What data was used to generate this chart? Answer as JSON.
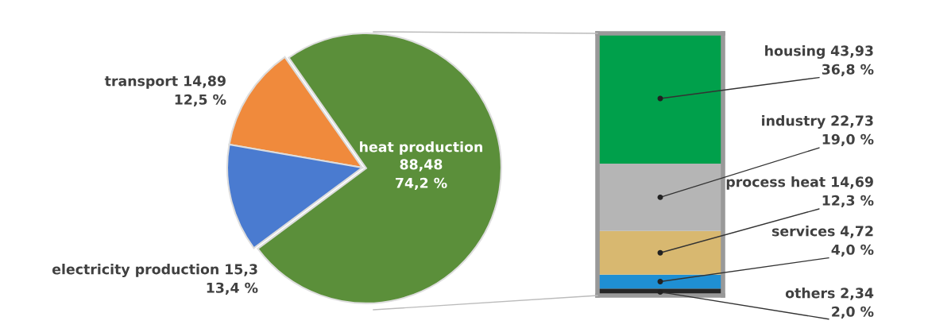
{
  "chart_data": [
    {
      "type": "pie",
      "categories": [
        "heat production",
        "transport",
        "electricity production"
      ],
      "values": [
        88.48,
        14.89,
        15.3
      ],
      "colors": [
        "#5b8f3a",
        "#f08a3c",
        "#4a7bd0"
      ],
      "value_labels": [
        "88,48\n74,2 %",
        "14,89\n12,5 %",
        "15,3\n13,4 %"
      ],
      "legend": false
    },
    {
      "type": "bar",
      "stacked": true,
      "categories": [
        null
      ],
      "legend": false,
      "series": [
        {
          "name": "others",
          "color": "#262626",
          "values": [
            2.34
          ],
          "value_labels": [
            "2,34\n2,0 %"
          ]
        },
        {
          "name": "services",
          "color": "#1f8fd3",
          "values": [
            4.72
          ],
          "value_labels": [
            "4,72\n4,0 %"
          ]
        },
        {
          "name": "process heat",
          "color": "#d8b870",
          "values": [
            14.69
          ],
          "value_labels": [
            "14,69\n12,3 %"
          ]
        },
        {
          "name": "industry",
          "color": "#b5b5b5",
          "values": [
            22.73
          ],
          "value_labels": [
            "22,73\n19,0 %"
          ]
        },
        {
          "name": "housing",
          "color": "#00a04b",
          "values": [
            43.93
          ],
          "value_labels": [
            "43,93\n36,8 %"
          ]
        }
      ]
    }
  ]
}
